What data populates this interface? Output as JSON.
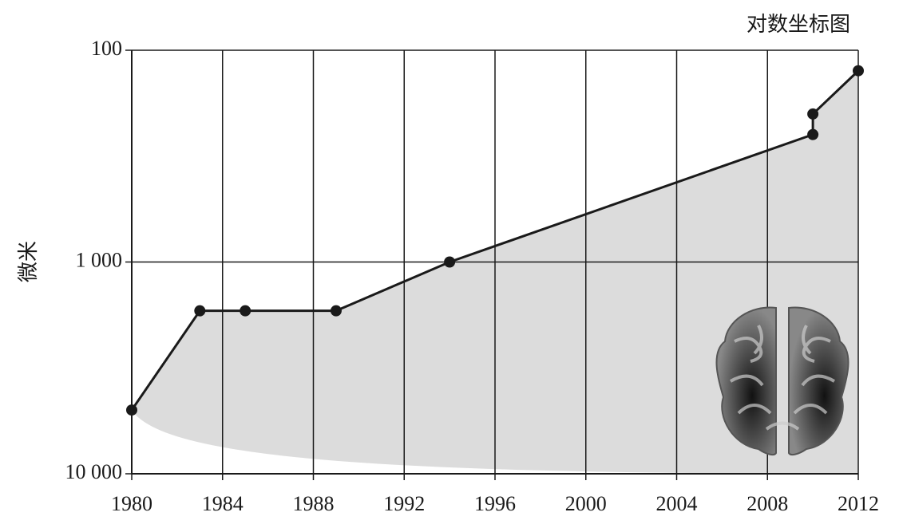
{
  "chart_data": {
    "type": "line",
    "title": "对数坐标图",
    "y_label": "微米",
    "x": [
      1980,
      1983,
      1985,
      1989,
      1994,
      2010,
      2010,
      2012
    ],
    "values": [
      5000,
      1700,
      1700,
      1700,
      1000,
      250,
      200,
      125
    ],
    "color": "#1a1a1a",
    "xlim": [
      1980,
      2012
    ],
    "xticks": [
      1980,
      1984,
      1988,
      1992,
      1996,
      2000,
      2004,
      2008,
      2012
    ],
    "ylim": [
      10000,
      100
    ],
    "yticks": [
      100,
      {
        "value": 1000,
        "label": "1 000"
      },
      {
        "value": 10000,
        "label": "10 000"
      }
    ],
    "log_scale": true,
    "grid": true
  }
}
